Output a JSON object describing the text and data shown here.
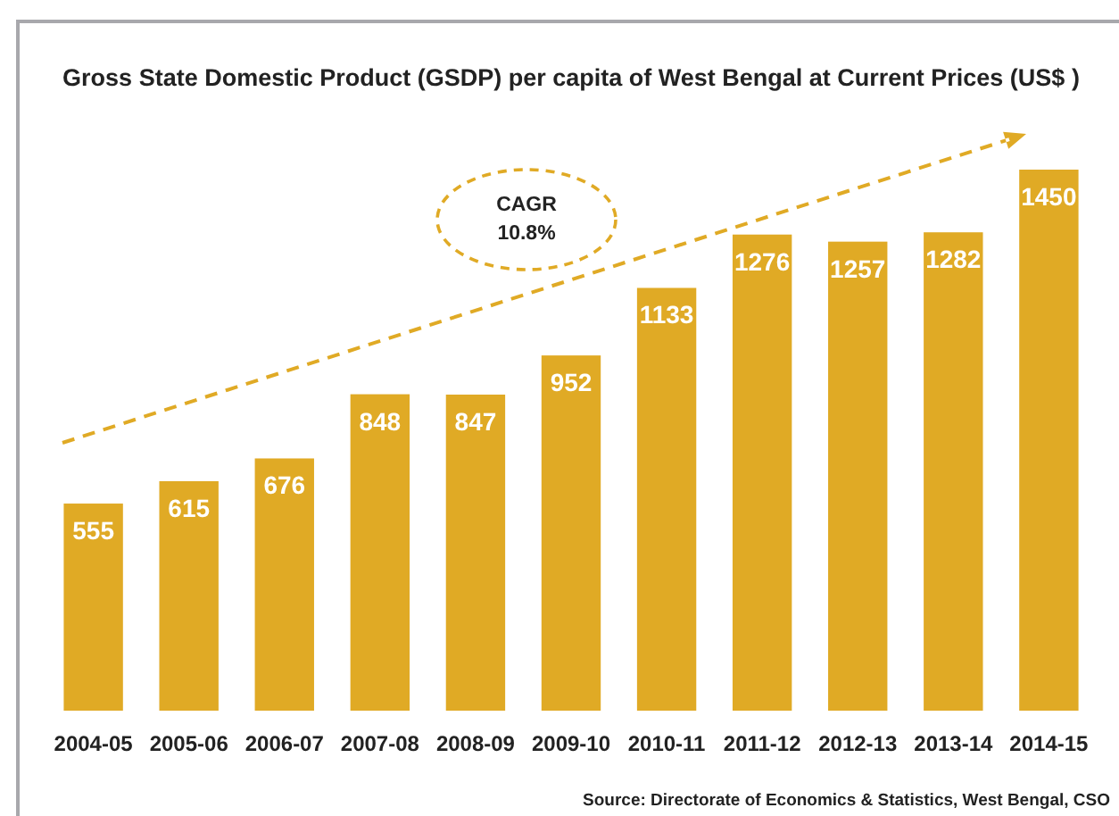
{
  "chart_data": {
    "type": "bar",
    "title": "Gross State Domestic Product (GSDP) per capita of West Bengal at Current Prices (US$ )",
    "categories": [
      "2004-05",
      "2005-06",
      "2006-07",
      "2007-08",
      "2008-09",
      "2009-10",
      "2010-11",
      "2011-12",
      "2012-13",
      "2013-14",
      "2014-15"
    ],
    "values": [
      555,
      615,
      676,
      848,
      847,
      952,
      1133,
      1276,
      1257,
      1282,
      1450
    ],
    "color": "#e0aa25",
    "data_labels": true,
    "annotations": [
      "CAGR 10.8%",
      "Source: Directorate of Economics & Statistics, West Bengal, CSO"
    ]
  }
}
